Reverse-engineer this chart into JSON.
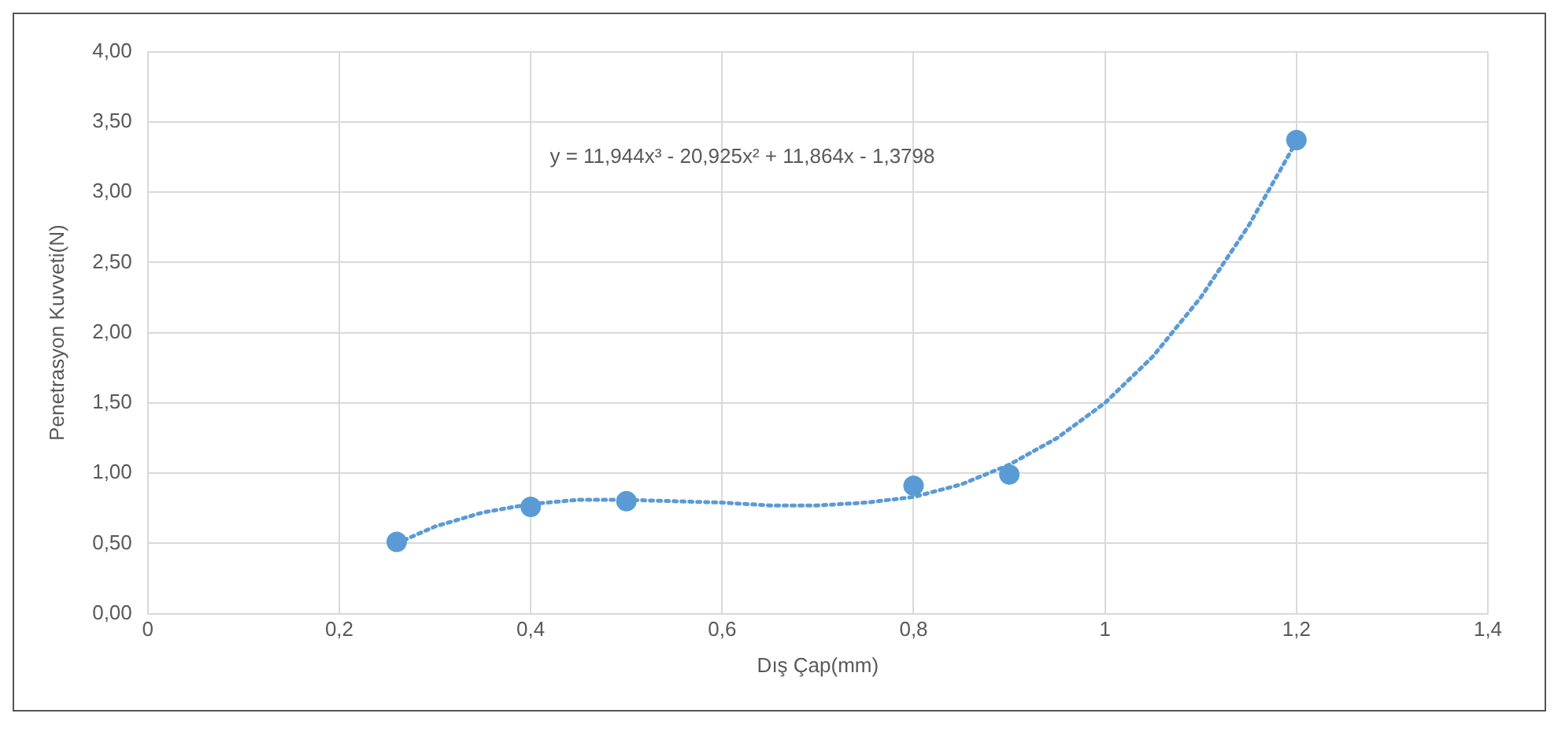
{
  "chart_data": {
    "type": "scatter",
    "xlabel": "Dış Çap(mm)",
    "ylabel": "Penetrasyon Kuvveti(N)",
    "annotations": [
      "y = 11,944x³ - 20,925x² + 11,864x - 1,3798"
    ],
    "series": [
      {
        "color": "#5b9bd5",
        "x": [
          0.26,
          0.4,
          0.5,
          0.8,
          0.9,
          1.2
        ],
        "values": [
          0.51,
          0.76,
          0.8,
          0.91,
          0.99,
          3.37
        ],
        "marker": "circle"
      },
      {
        "type": "line",
        "color": "#5b9bd5",
        "line_style": "dotted",
        "marker": "none",
        "x": [
          0.26,
          0.3,
          0.35,
          0.4,
          0.45,
          0.5,
          0.55,
          0.6,
          0.65,
          0.7,
          0.75,
          0.8,
          0.85,
          0.9,
          0.95,
          1.0,
          1.05,
          1.1,
          1.15,
          1.2
        ],
        "values": [
          0.5,
          0.62,
          0.72,
          0.78,
          0.81,
          0.81,
          0.8,
          0.79,
          0.77,
          0.77,
          0.79,
          0.83,
          0.92,
          1.06,
          1.25,
          1.5,
          1.83,
          2.25,
          2.76,
          3.36
        ]
      }
    ],
    "xlim": [
      0,
      1.4
    ],
    "xticks": [
      0,
      {
        "value": 0.2,
        "label": "0,2"
      },
      {
        "value": 0.4,
        "label": "0,4"
      },
      {
        "value": 0.6,
        "label": "0,6"
      },
      {
        "value": 0.8,
        "label": "0,8"
      },
      1,
      {
        "value": 1.2,
        "label": "1,2"
      },
      {
        "value": 1.4,
        "label": "1,4"
      }
    ],
    "ylim": [
      0,
      4
    ],
    "yticks": [
      {
        "value": 0,
        "label": "0,00"
      },
      {
        "value": 0.5,
        "label": "0,50"
      },
      {
        "value": 1,
        "label": "1,00"
      },
      {
        "value": 1.5,
        "label": "1,50"
      },
      {
        "value": 2,
        "label": "2,00"
      },
      {
        "value": 2.5,
        "label": "2,50"
      },
      {
        "value": 3,
        "label": "3,00"
      },
      {
        "value": 3.5,
        "label": "3,50"
      },
      {
        "value": 4,
        "label": "4,00"
      }
    ],
    "grid": true,
    "legend": false
  }
}
